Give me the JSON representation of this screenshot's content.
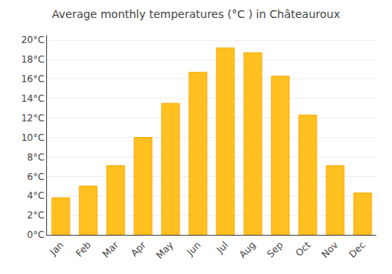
{
  "chart_data": {
    "type": "bar",
    "title": "Average monthly temperatures (°C ) in Châteauroux",
    "categories": [
      "Jan",
      "Feb",
      "Mar",
      "Apr",
      "May",
      "Jun",
      "Jul",
      "Aug",
      "Sep",
      "Oct",
      "Nov",
      "Dec"
    ],
    "values": [
      3.8,
      5.0,
      7.1,
      10.0,
      13.5,
      16.7,
      19.2,
      18.7,
      16.3,
      12.3,
      7.1,
      4.3
    ],
    "color": "#FFC020",
    "ylim": [
      0,
      20.5
    ],
    "yticks": [
      {
        "value": 0,
        "label": "0°C"
      },
      {
        "value": 2,
        "label": "2°C"
      },
      {
        "value": 4,
        "label": "4°C"
      },
      {
        "value": 6,
        "label": "6°C"
      },
      {
        "value": 8,
        "label": "8°C"
      },
      {
        "value": 10,
        "label": "10°C"
      },
      {
        "value": 12,
        "label": "12°C"
      },
      {
        "value": 14,
        "label": "14°C"
      },
      {
        "value": 16,
        "label": "16°C"
      },
      {
        "value": 18,
        "label": "18°C"
      },
      {
        "value": 20,
        "label": "20°C"
      }
    ],
    "grid": true
  }
}
